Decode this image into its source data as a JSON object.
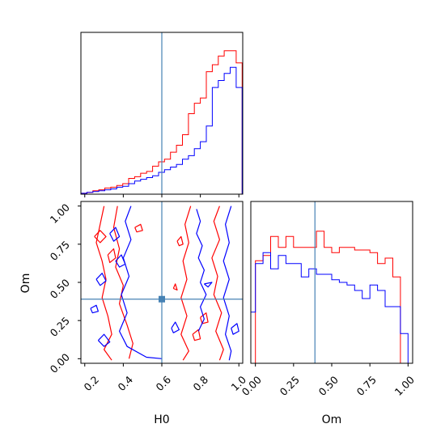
{
  "chart_data": {
    "type": "corner",
    "parameters": [
      "H0",
      "Om"
    ],
    "truth": {
      "H0": 0.6,
      "Om": 0.39
    },
    "truth_color": "#4682b4",
    "panels": [
      {
        "id": "hist-H0",
        "type": "histogram",
        "parameter": "H0",
        "xlim": [
          0.18,
          1.02
        ],
        "ylim": [
          0,
          185
        ],
        "bin_edges": [
          0.18,
          0.211,
          0.242,
          0.273,
          0.304,
          0.335,
          0.366,
          0.397,
          0.428,
          0.459,
          0.49,
          0.521,
          0.552,
          0.583,
          0.614,
          0.645,
          0.676,
          0.707,
          0.738,
          0.769,
          0.8,
          0.831,
          0.862,
          0.893,
          0.924,
          0.955,
          0.986,
          1.017
        ],
        "series": [
          {
            "color": "#ff0000",
            "counts": [
              1,
              2,
              4,
              5,
              7,
              8,
              10,
              12,
              18,
              20,
              24,
              26,
              32,
              37,
              40,
              48,
              56,
              68,
              92,
              104,
              110,
              140,
              148,
              158,
              164,
              164,
              150
            ]
          },
          {
            "color": "#0000ff",
            "counts": [
              1,
              2,
              3,
              4,
              5,
              6,
              8,
              9,
              12,
              15,
              17,
              19,
              21,
              25,
              28,
              31,
              34,
              40,
              44,
              52,
              60,
              78,
              122,
              130,
              138,
              145,
              122
            ]
          }
        ],
        "x_ticks": [
          0.2,
          0.4,
          0.6,
          0.8,
          1.0
        ]
      },
      {
        "id": "contour-H0-Om",
        "type": "contour",
        "x": "H0",
        "y": "Om",
        "xlim": [
          0.18,
          1.02
        ],
        "ylim": [
          -0.03,
          1.03
        ],
        "x_ticks": [
          "0.2",
          "0.4",
          "0.6",
          "0.8",
          "1.0"
        ],
        "y_ticks": [
          "0.00",
          "0.25",
          "0.50",
          "0.75",
          "1.00"
        ],
        "xlabel": "H0",
        "ylabel": "Om",
        "series": [
          {
            "color": "#ff0000",
            "paths": [
              [
                [
                  0.3,
                  1.0
                ],
                [
                  0.28,
                  0.88
                ],
                [
                  0.26,
                  0.76
                ],
                [
                  0.29,
                  0.64
                ],
                [
                  0.31,
                  0.52
                ],
                [
                  0.29,
                  0.4
                ],
                [
                  0.32,
                  0.28
                ],
                [
                  0.34,
                  0.16
                ],
                [
                  0.3,
                  0.06
                ],
                [
                  0.34,
                  -0.01
                ]
              ],
              [
                [
                  0.37,
                  1.0
                ],
                [
                  0.35,
                  0.86
                ],
                [
                  0.38,
                  0.72
                ],
                [
                  0.36,
                  0.6
                ],
                [
                  0.4,
                  0.48
                ],
                [
                  0.38,
                  0.36
                ],
                [
                  0.42,
                  0.22
                ],
                [
                  0.45,
                  0.1
                ],
                [
                  0.43,
                  0.0
                ]
              ],
              [
                [
                  0.75,
                  1.0
                ],
                [
                  0.72,
                  0.88
                ],
                [
                  0.74,
                  0.76
                ],
                [
                  0.71,
                  0.64
                ],
                [
                  0.73,
                  0.52
                ],
                [
                  0.7,
                  0.4
                ],
                [
                  0.73,
                  0.28
                ],
                [
                  0.7,
                  0.16
                ],
                [
                  0.74,
                  0.05
                ],
                [
                  0.71,
                  -0.01
                ]
              ],
              [
                [
                  0.9,
                  1.0
                ],
                [
                  0.87,
                  0.9
                ],
                [
                  0.9,
                  0.78
                ],
                [
                  0.86,
                  0.66
                ],
                [
                  0.89,
                  0.54
                ],
                [
                  0.87,
                  0.42
                ],
                [
                  0.91,
                  0.3
                ],
                [
                  0.88,
                  0.18
                ],
                [
                  0.92,
                  0.06
                ],
                [
                  0.9,
                  -0.01
                ]
              ],
              [
                [
                  0.25,
                  0.8
                ],
                [
                  0.28,
                  0.84
                ],
                [
                  0.31,
                  0.8
                ],
                [
                  0.28,
                  0.76
                ],
                [
                  0.25,
                  0.8
                ]
              ],
              [
                [
                  0.32,
                  0.68
                ],
                [
                  0.35,
                  0.72
                ],
                [
                  0.36,
                  0.66
                ],
                [
                  0.33,
                  0.63
                ],
                [
                  0.32,
                  0.68
                ]
              ],
              [
                [
                  0.46,
                  0.86
                ],
                [
                  0.49,
                  0.88
                ],
                [
                  0.5,
                  0.84
                ],
                [
                  0.47,
                  0.83
                ],
                [
                  0.46,
                  0.86
                ]
              ],
              [
                [
                  0.68,
                  0.77
                ],
                [
                  0.7,
                  0.8
                ],
                [
                  0.71,
                  0.75
                ],
                [
                  0.69,
                  0.74
                ],
                [
                  0.68,
                  0.77
                ]
              ],
              [
                [
                  0.66,
                  0.46
                ],
                [
                  0.67,
                  0.49
                ],
                [
                  0.68,
                  0.45
                ],
                [
                  0.66,
                  0.46
                ]
              ],
              [
                [
                  0.8,
                  0.27
                ],
                [
                  0.83,
                  0.3
                ],
                [
                  0.84,
                  0.24
                ],
                [
                  0.81,
                  0.23
                ],
                [
                  0.8,
                  0.27
                ]
              ],
              [
                [
                  0.76,
                  0.16
                ],
                [
                  0.79,
                  0.19
                ],
                [
                  0.8,
                  0.13
                ],
                [
                  0.77,
                  0.12
                ],
                [
                  0.76,
                  0.16
                ]
              ]
            ]
          },
          {
            "color": "#0000ff",
            "paths": [
              [
                [
                  0.44,
                  1.0
                ],
                [
                  0.41,
                  0.9
                ],
                [
                  0.44,
                  0.78
                ],
                [
                  0.4,
                  0.66
                ],
                [
                  0.43,
                  0.54
                ],
                [
                  0.39,
                  0.42
                ],
                [
                  0.42,
                  0.3
                ],
                [
                  0.38,
                  0.18
                ],
                [
                  0.42,
                  0.08
                ],
                [
                  0.52,
                  0.01
                ],
                [
                  0.6,
                  0.0
                ]
              ],
              [
                [
                  0.96,
                  1.0
                ],
                [
                  0.93,
                  0.88
                ],
                [
                  0.95,
                  0.76
                ],
                [
                  0.92,
                  0.64
                ],
                [
                  0.95,
                  0.52
                ],
                [
                  0.92,
                  0.4
                ],
                [
                  0.95,
                  0.28
                ],
                [
                  0.93,
                  0.16
                ],
                [
                  0.96,
                  0.05
                ],
                [
                  0.95,
                  -0.01
                ]
              ],
              [
                [
                  0.78,
                  0.98
                ],
                [
                  0.8,
                  0.9
                ],
                [
                  0.78,
                  0.82
                ],
                [
                  0.81,
                  0.74
                ],
                [
                  0.79,
                  0.66
                ],
                [
                  0.82,
                  0.58
                ],
                [
                  0.8,
                  0.5
                ],
                [
                  0.83,
                  0.42
                ],
                [
                  0.8,
                  0.34
                ],
                [
                  0.82,
                  0.26
                ],
                [
                  0.79,
                  0.18
                ]
              ],
              [
                [
                  0.26,
                  0.52
                ],
                [
                  0.29,
                  0.56
                ],
                [
                  0.31,
                  0.51
                ],
                [
                  0.28,
                  0.48
                ],
                [
                  0.26,
                  0.52
                ]
              ],
              [
                [
                  0.23,
                  0.33
                ],
                [
                  0.26,
                  0.35
                ],
                [
                  0.27,
                  0.31
                ],
                [
                  0.24,
                  0.3
                ],
                [
                  0.23,
                  0.33
                ]
              ],
              [
                [
                  0.33,
                  0.82
                ],
                [
                  0.36,
                  0.86
                ],
                [
                  0.38,
                  0.8
                ],
                [
                  0.35,
                  0.77
                ],
                [
                  0.33,
                  0.82
                ]
              ],
              [
                [
                  0.36,
                  0.64
                ],
                [
                  0.39,
                  0.68
                ],
                [
                  0.41,
                  0.62
                ],
                [
                  0.38,
                  0.6
                ],
                [
                  0.36,
                  0.64
                ]
              ],
              [
                [
                  0.65,
                  0.2
                ],
                [
                  0.67,
                  0.24
                ],
                [
                  0.69,
                  0.19
                ],
                [
                  0.66,
                  0.17
                ],
                [
                  0.65,
                  0.2
                ]
              ],
              [
                [
                  0.82,
                  0.49
                ],
                [
                  0.86,
                  0.5
                ],
                [
                  0.84,
                  0.47
                ],
                [
                  0.82,
                  0.49
                ]
              ],
              [
                [
                  0.27,
                  0.12
                ],
                [
                  0.3,
                  0.16
                ],
                [
                  0.33,
                  0.11
                ],
                [
                  0.3,
                  0.08
                ],
                [
                  0.27,
                  0.12
                ]
              ],
              [
                [
                  0.96,
                  0.2
                ],
                [
                  0.99,
                  0.23
                ],
                [
                  1.0,
                  0.18
                ],
                [
                  0.97,
                  0.16
                ],
                [
                  0.96,
                  0.2
                ]
              ]
            ]
          }
        ]
      },
      {
        "id": "hist-Om",
        "type": "histogram",
        "parameter": "Om",
        "xlim": [
          -0.03,
          1.03
        ],
        "ylim": [
          0,
          120
        ],
        "x_ticks": [
          "0.00",
          "0.25",
          "0.50",
          "0.75",
          "1.00"
        ],
        "xlabel": "Om",
        "bin_edges": [
          -0.03,
          0.0,
          0.05,
          0.1,
          0.15,
          0.2,
          0.25,
          0.3,
          0.35,
          0.4,
          0.45,
          0.5,
          0.55,
          0.6,
          0.65,
          0.7,
          0.75,
          0.8,
          0.85,
          0.9,
          0.95,
          1.0
        ],
        "series": [
          {
            "color": "#ff0000",
            "counts": [
              0,
              76,
              80,
              94,
              86,
              94,
              86,
              86,
              86,
              98,
              86,
              82,
              86,
              86,
              84,
              84,
              82,
              74,
              78,
              64,
              0
            ]
          },
          {
            "color": "#0000ff",
            "counts": [
              38,
              74,
              82,
              70,
              80,
              74,
              74,
              64,
              70,
              66,
              66,
              62,
              60,
              58,
              54,
              48,
              58,
              54,
              42,
              42,
              22
            ]
          }
        ]
      }
    ]
  }
}
